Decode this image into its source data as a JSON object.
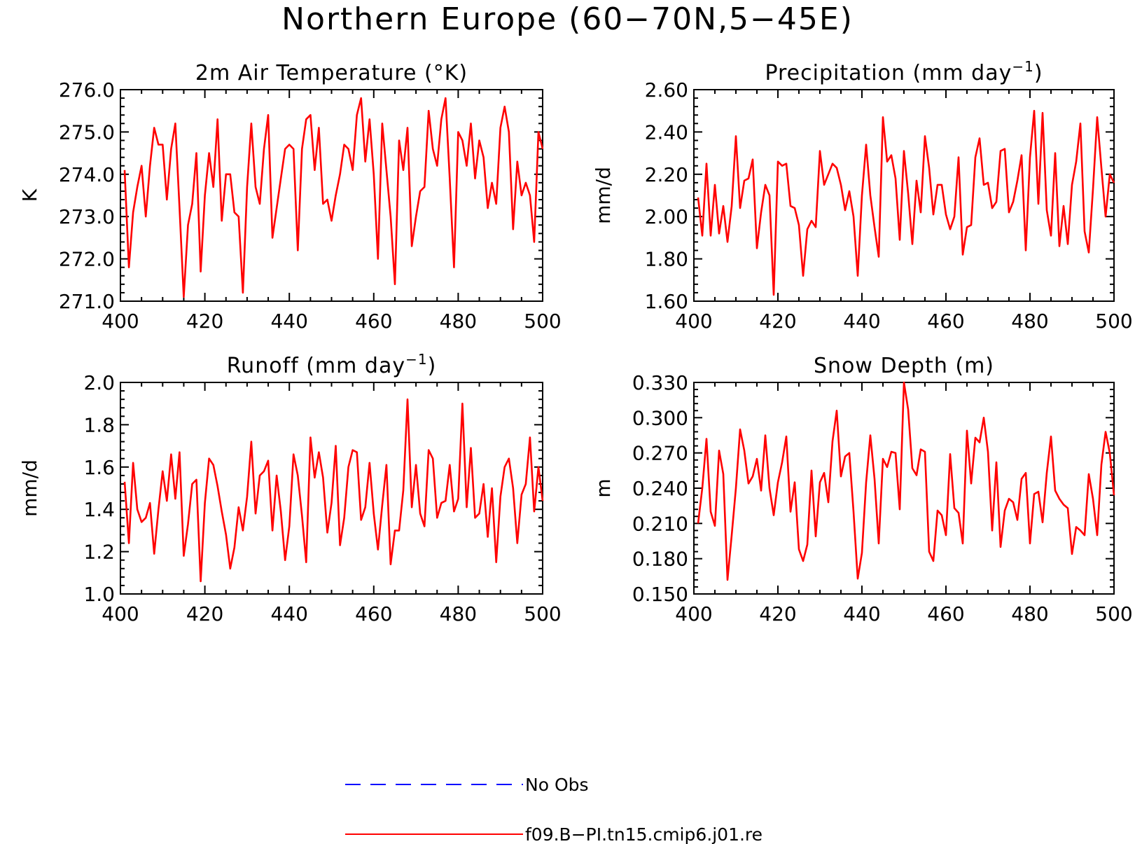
{
  "title": "Northern Europe (60−70N,5−45E)",
  "legend": [
    {
      "label": "No Obs",
      "color": "#0000ff",
      "style": "dashed"
    },
    {
      "label": "f09.B−PI.tn15.cmip6.j01.re",
      "color": "#ff0000",
      "style": "solid"
    }
  ],
  "chart_data": [
    {
      "type": "line",
      "title_main": "2m Air Temperature (°K)",
      "title_sup": "",
      "title_end": "",
      "ylabel": "K",
      "xlim": [
        400,
        500
      ],
      "ylim": [
        271.0,
        276.0
      ],
      "xticks": [
        "400",
        "420",
        "440",
        "460",
        "480",
        "500"
      ],
      "yticks": [
        "271.0",
        "272.0",
        "273.0",
        "274.0",
        "275.0",
        "276.0"
      ],
      "ytick_values": [
        271,
        272,
        273,
        274,
        275,
        276
      ],
      "grid": false,
      "series": [
        {
          "color": "#ff0000",
          "x": [
            401,
            402,
            403,
            404,
            405,
            406,
            407,
            408,
            409,
            410,
            411,
            412,
            413,
            414,
            415,
            416,
            417,
            418,
            419,
            420,
            421,
            422,
            423,
            424,
            425,
            426,
            427,
            428,
            429,
            430,
            431,
            432,
            433,
            434,
            435,
            436,
            437,
            438,
            439,
            440,
            441,
            442,
            443,
            444,
            445,
            446,
            447,
            448,
            449,
            450,
            451,
            452,
            453,
            454,
            455,
            456,
            457,
            458,
            459,
            460,
            461,
            462,
            463,
            464,
            465,
            466,
            467,
            468,
            469,
            470,
            471,
            472,
            473,
            474,
            475,
            476,
            477,
            478,
            479,
            480,
            481,
            482,
            483,
            484,
            485,
            486,
            487,
            488,
            489,
            490,
            491,
            492,
            493,
            494,
            495,
            496,
            497,
            498,
            499,
            500
          ],
          "y": [
            274.1,
            271.8,
            273.1,
            273.7,
            274.2,
            273.0,
            274.2,
            275.1,
            274.7,
            274.7,
            273.4,
            274.6,
            275.2,
            273.2,
            271.1,
            272.8,
            273.3,
            274.5,
            271.7,
            273.5,
            274.5,
            273.7,
            275.3,
            272.9,
            274.0,
            274.0,
            273.1,
            273.0,
            271.2,
            273.7,
            275.2,
            273.7,
            273.3,
            274.6,
            275.4,
            272.5,
            273.2,
            273.9,
            274.6,
            274.7,
            274.6,
            272.2,
            274.6,
            275.3,
            275.4,
            274.1,
            275.1,
            273.3,
            273.4,
            272.9,
            273.5,
            274.0,
            274.7,
            274.6,
            274.1,
            275.4,
            275.8,
            274.3,
            275.3,
            274.0,
            272.0,
            275.2,
            274.1,
            273.0,
            271.4,
            274.8,
            274.1,
            275.1,
            272.3,
            273.0,
            273.6,
            273.7,
            275.5,
            274.6,
            274.2,
            275.3,
            275.8,
            273.9,
            271.8,
            275.0,
            274.8,
            274.2,
            275.2,
            273.9,
            274.8,
            274.4,
            273.2,
            273.8,
            273.3,
            275.1,
            275.6,
            275.0,
            272.7,
            274.3,
            273.5,
            273.8,
            273.5,
            272.4,
            275.0,
            274.6
          ]
        }
      ]
    },
    {
      "type": "line",
      "title_main": "Precipitation (mm day",
      "title_sup": "−1",
      "title_end": ")",
      "ylabel": "mm/d",
      "xlim": [
        400,
        500
      ],
      "ylim": [
        1.6,
        2.6
      ],
      "xticks": [
        "400",
        "420",
        "440",
        "460",
        "480",
        "500"
      ],
      "yticks": [
        "1.60",
        "1.80",
        "2.00",
        "2.20",
        "2.40",
        "2.60"
      ],
      "ytick_values": [
        1.6,
        1.8,
        2.0,
        2.2,
        2.4,
        2.6
      ],
      "grid": false,
      "series": [
        {
          "color": "#ff0000",
          "x": [
            401,
            402,
            403,
            404,
            405,
            406,
            407,
            408,
            409,
            410,
            411,
            412,
            413,
            414,
            415,
            416,
            417,
            418,
            419,
            420,
            421,
            422,
            423,
            424,
            425,
            426,
            427,
            428,
            429,
            430,
            431,
            432,
            433,
            434,
            435,
            436,
            437,
            438,
            439,
            440,
            441,
            442,
            443,
            444,
            445,
            446,
            447,
            448,
            449,
            450,
            451,
            452,
            453,
            454,
            455,
            456,
            457,
            458,
            459,
            460,
            461,
            462,
            463,
            464,
            465,
            466,
            467,
            468,
            469,
            470,
            471,
            472,
            473,
            474,
            475,
            476,
            477,
            478,
            479,
            480,
            481,
            482,
            483,
            484,
            485,
            486,
            487,
            488,
            489,
            490,
            491,
            492,
            493,
            494,
            495,
            496,
            497,
            498,
            499,
            500
          ],
          "y": [
            2.09,
            1.91,
            2.25,
            1.91,
            2.15,
            1.92,
            2.05,
            1.88,
            2.05,
            2.38,
            2.04,
            2.17,
            2.18,
            2.27,
            1.85,
            2.02,
            2.15,
            2.1,
            1.63,
            2.26,
            2.24,
            2.25,
            2.05,
            2.04,
            1.96,
            1.72,
            1.94,
            1.98,
            1.95,
            2.31,
            2.15,
            2.2,
            2.25,
            2.23,
            2.15,
            2.03,
            2.12,
            2.0,
            1.72,
            2.1,
            2.34,
            2.1,
            1.95,
            1.81,
            2.47,
            2.26,
            2.29,
            2.18,
            1.89,
            2.31,
            2.11,
            1.87,
            2.17,
            2.02,
            2.38,
            2.23,
            2.01,
            2.15,
            2.15,
            2.01,
            1.94,
            2.0,
            2.28,
            1.82,
            1.95,
            1.96,
            2.28,
            2.37,
            2.15,
            2.16,
            2.04,
            2.07,
            2.31,
            2.32,
            2.02,
            2.07,
            2.17,
            2.29,
            1.84,
            2.28,
            2.5,
            2.06,
            2.49,
            2.03,
            1.91,
            2.3,
            1.86,
            2.05,
            1.87,
            2.15,
            2.26,
            2.44,
            1.93,
            1.83,
            2.13,
            2.47,
            2.23,
            2.0,
            2.2,
            2.16
          ]
        }
      ]
    },
    {
      "type": "line",
      "title_main": "Runoff (mm day",
      "title_sup": "−1",
      "title_end": ")",
      "ylabel": "mm/d",
      "xlim": [
        400,
        500
      ],
      "ylim": [
        1.0,
        2.0
      ],
      "xticks": [
        "400",
        "420",
        "440",
        "460",
        "480",
        "500"
      ],
      "yticks": [
        "1.0",
        "1.2",
        "1.4",
        "1.6",
        "1.8",
        "2.0"
      ],
      "ytick_values": [
        1.0,
        1.2,
        1.4,
        1.6,
        1.8,
        2.0
      ],
      "grid": false,
      "series": [
        {
          "color": "#ff0000",
          "x": [
            401,
            402,
            403,
            404,
            405,
            406,
            407,
            408,
            409,
            410,
            411,
            412,
            413,
            414,
            415,
            416,
            417,
            418,
            419,
            420,
            421,
            422,
            423,
            424,
            425,
            426,
            427,
            428,
            429,
            430,
            431,
            432,
            433,
            434,
            435,
            436,
            437,
            438,
            439,
            440,
            441,
            442,
            443,
            444,
            445,
            446,
            447,
            448,
            449,
            450,
            451,
            452,
            453,
            454,
            455,
            456,
            457,
            458,
            459,
            460,
            461,
            462,
            463,
            464,
            465,
            466,
            467,
            468,
            469,
            470,
            471,
            472,
            473,
            474,
            475,
            476,
            477,
            478,
            479,
            480,
            481,
            482,
            483,
            484,
            485,
            486,
            487,
            488,
            489,
            490,
            491,
            492,
            493,
            494,
            495,
            496,
            497,
            498,
            499,
            500
          ],
          "y": [
            1.53,
            1.24,
            1.62,
            1.4,
            1.34,
            1.36,
            1.43,
            1.19,
            1.4,
            1.58,
            1.44,
            1.66,
            1.45,
            1.67,
            1.18,
            1.33,
            1.52,
            1.54,
            1.06,
            1.43,
            1.64,
            1.61,
            1.51,
            1.39,
            1.28,
            1.12,
            1.22,
            1.41,
            1.3,
            1.46,
            1.72,
            1.38,
            1.56,
            1.58,
            1.63,
            1.3,
            1.56,
            1.39,
            1.16,
            1.32,
            1.66,
            1.56,
            1.37,
            1.15,
            1.74,
            1.55,
            1.67,
            1.55,
            1.29,
            1.43,
            1.7,
            1.23,
            1.36,
            1.6,
            1.68,
            1.67,
            1.35,
            1.41,
            1.62,
            1.38,
            1.21,
            1.42,
            1.61,
            1.14,
            1.3,
            1.3,
            1.49,
            1.92,
            1.41,
            1.61,
            1.38,
            1.32,
            1.68,
            1.64,
            1.36,
            1.43,
            1.44,
            1.61,
            1.39,
            1.45,
            1.9,
            1.41,
            1.69,
            1.36,
            1.38,
            1.52,
            1.27,
            1.5,
            1.15,
            1.46,
            1.6,
            1.64,
            1.5,
            1.24,
            1.47,
            1.52,
            1.74,
            1.39,
            1.6,
            1.44
          ]
        }
      ]
    },
    {
      "type": "line",
      "title_main": "Snow Depth (m)",
      "title_sup": "",
      "title_end": "",
      "ylabel": "m",
      "xlim": [
        400,
        500
      ],
      "ylim": [
        0.15,
        0.33
      ],
      "xticks": [
        "400",
        "420",
        "440",
        "460",
        "480",
        "500"
      ],
      "yticks": [
        "0.150",
        "0.180",
        "0.210",
        "0.240",
        "0.270",
        "0.300",
        "0.330"
      ],
      "ytick_values": [
        0.15,
        0.18,
        0.21,
        0.24,
        0.27,
        0.3,
        0.33
      ],
      "grid": false,
      "series": [
        {
          "color": "#ff0000",
          "x": [
            401,
            402,
            403,
            404,
            405,
            406,
            407,
            408,
            409,
            410,
            411,
            412,
            413,
            414,
            415,
            416,
            417,
            418,
            419,
            420,
            421,
            422,
            423,
            424,
            425,
            426,
            427,
            428,
            429,
            430,
            431,
            432,
            433,
            434,
            435,
            436,
            437,
            438,
            439,
            440,
            441,
            442,
            443,
            444,
            445,
            446,
            447,
            448,
            449,
            450,
            451,
            452,
            453,
            454,
            455,
            456,
            457,
            458,
            459,
            460,
            461,
            462,
            463,
            464,
            465,
            466,
            467,
            468,
            469,
            470,
            471,
            472,
            473,
            474,
            475,
            476,
            477,
            478,
            479,
            480,
            481,
            482,
            483,
            484,
            485,
            486,
            487,
            488,
            489,
            490,
            491,
            492,
            493,
            494,
            495,
            496,
            497,
            498,
            499,
            500
          ],
          "y": [
            0.21,
            0.24,
            0.282,
            0.22,
            0.208,
            0.272,
            0.252,
            0.162,
            0.2,
            0.24,
            0.29,
            0.272,
            0.244,
            0.25,
            0.265,
            0.238,
            0.285,
            0.24,
            0.217,
            0.245,
            0.262,
            0.284,
            0.22,
            0.245,
            0.188,
            0.178,
            0.192,
            0.255,
            0.199,
            0.245,
            0.253,
            0.228,
            0.28,
            0.306,
            0.25,
            0.267,
            0.27,
            0.22,
            0.163,
            0.185,
            0.245,
            0.285,
            0.248,
            0.193,
            0.265,
            0.258,
            0.271,
            0.27,
            0.222,
            0.33,
            0.307,
            0.257,
            0.251,
            0.273,
            0.271,
            0.186,
            0.178,
            0.221,
            0.217,
            0.2,
            0.269,
            0.223,
            0.219,
            0.193,
            0.289,
            0.244,
            0.283,
            0.279,
            0.3,
            0.271,
            0.204,
            0.262,
            0.19,
            0.221,
            0.231,
            0.228,
            0.213,
            0.248,
            0.253,
            0.193,
            0.235,
            0.237,
            0.211,
            0.253,
            0.284,
            0.238,
            0.231,
            0.226,
            0.223,
            0.184,
            0.207,
            0.204,
            0.2,
            0.252,
            0.231,
            0.2,
            0.26,
            0.288,
            0.27,
            0.234
          ]
        }
      ]
    }
  ]
}
